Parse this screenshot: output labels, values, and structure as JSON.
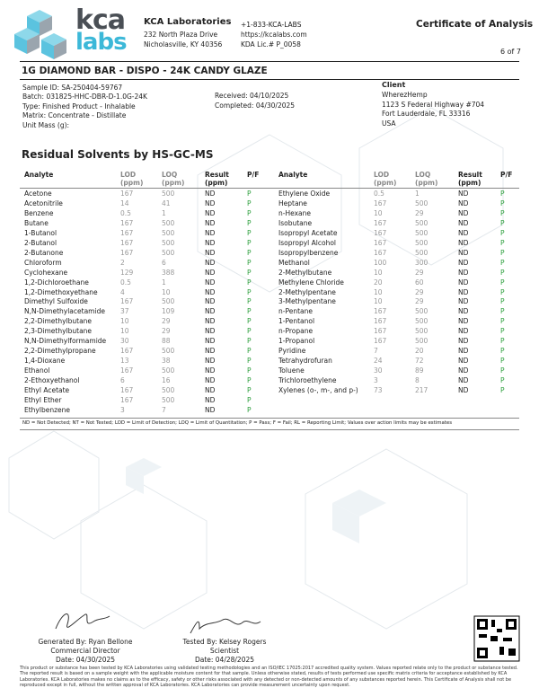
{
  "header": {
    "logo": {
      "top": "kca",
      "bottom": "labs"
    },
    "company": "KCA Laboratories",
    "address": [
      "232 North Plaza Drive",
      "Nicholasville, KY 40356"
    ],
    "contact": [
      "+1-833-KCA-LABS",
      "https://kcalabs.com",
      "KDA Lic.# P_0058"
    ],
    "doc_title": "Certificate of Analysis",
    "page": "6 of 7"
  },
  "product": {
    "name": "1G DIAMOND BAR - DISPO - 24K CANDY GLAZE",
    "details": [
      "Sample ID: SA-250404-59767",
      "Batch: 031825-HHC-DBR-D-1.0G-24K",
      "Type: Finished Product - Inhalable",
      "Matrix: Concentrate - Distillate",
      "Unit Mass (g):"
    ],
    "dates": [
      "Received: 04/10/2025",
      "Completed: 04/30/2025"
    ]
  },
  "client": {
    "label": "Client",
    "lines": [
      "WherezHemp",
      "1123 S Federal Highway #704",
      "Fort Lauderdale, FL 33316",
      "USA"
    ]
  },
  "section_title": "Residual Solvents by HS-GC-MS",
  "columns": [
    "Analyte",
    "LOD (ppm)",
    "LOQ (ppm)",
    "Result (ppm)",
    "P/F"
  ],
  "tables": [
    {
      "rows": [
        [
          "Acetone",
          "167",
          "500",
          "ND",
          "P"
        ],
        [
          "Acetonitrile",
          "14",
          "41",
          "ND",
          "P"
        ],
        [
          "Benzene",
          "0.5",
          "1",
          "ND",
          "P"
        ],
        [
          "Butane",
          "167",
          "500",
          "ND",
          "P"
        ],
        [
          "1-Butanol",
          "167",
          "500",
          "ND",
          "P"
        ],
        [
          "2-Butanol",
          "167",
          "500",
          "ND",
          "P"
        ],
        [
          "2-Butanone",
          "167",
          "500",
          "ND",
          "P"
        ],
        [
          "Chloroform",
          "2",
          "6",
          "ND",
          "P"
        ],
        [
          "Cyclohexane",
          "129",
          "388",
          "ND",
          "P"
        ],
        [
          "1,2-Dichloroethane",
          "0.5",
          "1",
          "ND",
          "P"
        ],
        [
          "1,2-Dimethoxyethane",
          "4",
          "10",
          "ND",
          "P"
        ],
        [
          "Dimethyl Sulfoxide",
          "167",
          "500",
          "ND",
          "P"
        ],
        [
          "N,N-Dimethylacetamide",
          "37",
          "109",
          "ND",
          "P"
        ],
        [
          "2,2-Dimethylbutane",
          "10",
          "29",
          "ND",
          "P"
        ],
        [
          "2,3-Dimethylbutane",
          "10",
          "29",
          "ND",
          "P"
        ],
        [
          "N,N-Dimethylformamide",
          "30",
          "88",
          "ND",
          "P"
        ],
        [
          "2,2-Dimethylpropane",
          "167",
          "500",
          "ND",
          "P"
        ],
        [
          "1,4-Dioxane",
          "13",
          "38",
          "ND",
          "P"
        ],
        [
          "Ethanol",
          "167",
          "500",
          "ND",
          "P"
        ],
        [
          "2-Ethoxyethanol",
          "6",
          "16",
          "ND",
          "P"
        ],
        [
          "Ethyl Acetate",
          "167",
          "500",
          "ND",
          "P"
        ],
        [
          "Ethyl Ether",
          "167",
          "500",
          "ND",
          "P"
        ],
        [
          "Ethylbenzene",
          "3",
          "7",
          "ND",
          "P"
        ]
      ]
    },
    {
      "rows": [
        [
          "Ethylene Oxide",
          "0.5",
          "1",
          "ND",
          "P"
        ],
        [
          "Heptane",
          "167",
          "500",
          "ND",
          "P"
        ],
        [
          "n-Hexane",
          "10",
          "29",
          "ND",
          "P"
        ],
        [
          "Isobutane",
          "167",
          "500",
          "ND",
          "P"
        ],
        [
          "Isopropyl Acetate",
          "167",
          "500",
          "ND",
          "P"
        ],
        [
          "Isopropyl Alcohol",
          "167",
          "500",
          "ND",
          "P"
        ],
        [
          "Isopropylbenzene",
          "167",
          "500",
          "ND",
          "P"
        ],
        [
          "Methanol",
          "100",
          "300",
          "ND",
          "P"
        ],
        [
          "2-Methylbutane",
          "10",
          "29",
          "ND",
          "P"
        ],
        [
          "Methylene Chloride",
          "20",
          "60",
          "ND",
          "P"
        ],
        [
          "2-Methylpentane",
          "10",
          "29",
          "ND",
          "P"
        ],
        [
          "3-Methylpentane",
          "10",
          "29",
          "ND",
          "P"
        ],
        [
          "n-Pentane",
          "167",
          "500",
          "ND",
          "P"
        ],
        [
          "1-Pentanol",
          "167",
          "500",
          "ND",
          "P"
        ],
        [
          "n-Propane",
          "167",
          "500",
          "ND",
          "P"
        ],
        [
          "1-Propanol",
          "167",
          "500",
          "ND",
          "P"
        ],
        [
          "Pyridine",
          "7",
          "20",
          "ND",
          "P"
        ],
        [
          "Tetrahydrofuran",
          "24",
          "72",
          "ND",
          "P"
        ],
        [
          "Toluene",
          "30",
          "89",
          "ND",
          "P"
        ],
        [
          "Trichloroethylene",
          "3",
          "8",
          "ND",
          "P"
        ],
        [
          "Xylenes (o-, m-, and p-)",
          "73",
          "217",
          "ND",
          "P"
        ]
      ]
    }
  ],
  "footnote": "ND = Not Detected; NT = Not Tested; LOD = Limit of Detection; LOQ = Limit of Quantitation; P = Pass; F = Fail; RL = Reporting Limit; Values over action limits may be estimates",
  "signatures": [
    {
      "by": "Generated By: Ryan Bellone",
      "title": "Commercial Director",
      "date": "Date: 04/30/2025"
    },
    {
      "by": "Tested By: Kelsey Rogers",
      "title": "Scientist",
      "date": "Date: 04/28/2025"
    }
  ],
  "disclaimer": "This product or substance has been tested by KCA Laboratories using validated testing methodologies and an ISO/IEC 17025:2017 accredited quality system. Values reported relate only to the product or substance tested. The reported result is based on a sample weight with the applicable moisture content for that sample. Unless otherwise stated, results of tests performed use specific matrix criteria for acceptance established by KCA Laboratories. KCA Laboratories makes no claims as to the efficacy, safety or other risks associated with any detected or non-detected amounts of any substances reported herein. This Certificate of Analysis shall not be reproduced except in full, without the written approval of KCA Laboratories. KCA Laboratories can provide measurement uncertainty upon request."
}
